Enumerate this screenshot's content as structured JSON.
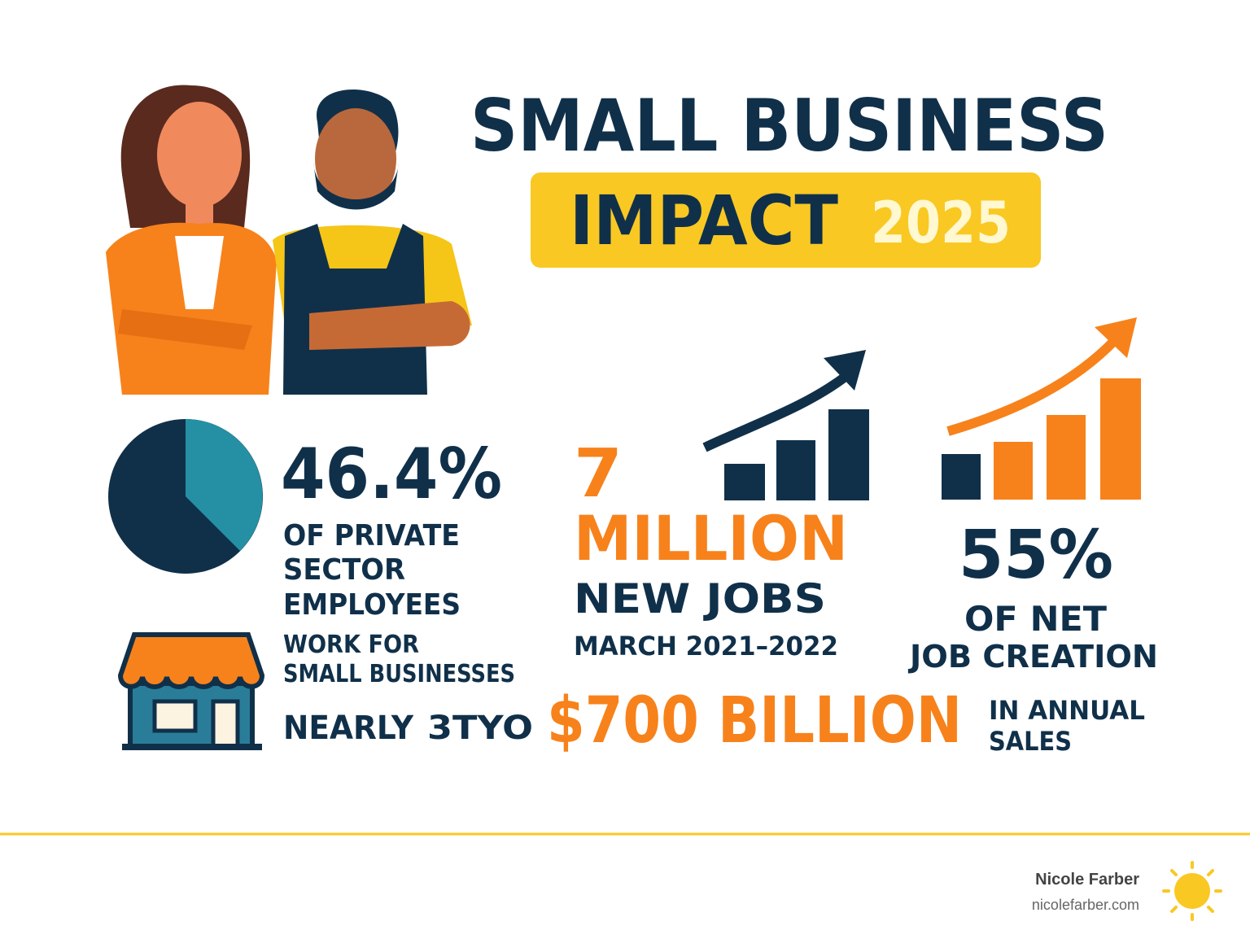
{
  "header": {
    "title_line1": "SMALL BUSINESS",
    "title_line2": "IMPACT",
    "year": "2025"
  },
  "stats": {
    "employees": {
      "value": "46.4%",
      "lines": [
        "OF PRIVATE",
        "SECTOR",
        "EMPLOYEES"
      ],
      "sub_lines": [
        "WORK FOR",
        "SMALL BUSINESSES"
      ]
    },
    "jobs": {
      "value": "7",
      "unit": "MILLION",
      "label": "NEW JOBS",
      "period": "MARCH 2021–2022"
    },
    "net_creation": {
      "value": "55%",
      "lines": [
        "OF NET",
        "JOB CREATION"
      ]
    },
    "sales": {
      "prefix": [
        "NEARLY",
        "3TYO"
      ],
      "value": "$700 BILLION",
      "lines": [
        "IN ANNUAL",
        "SALES"
      ]
    }
  },
  "footer": {
    "author": "Nicole Farber",
    "website": "nicolefarber.com"
  }
}
